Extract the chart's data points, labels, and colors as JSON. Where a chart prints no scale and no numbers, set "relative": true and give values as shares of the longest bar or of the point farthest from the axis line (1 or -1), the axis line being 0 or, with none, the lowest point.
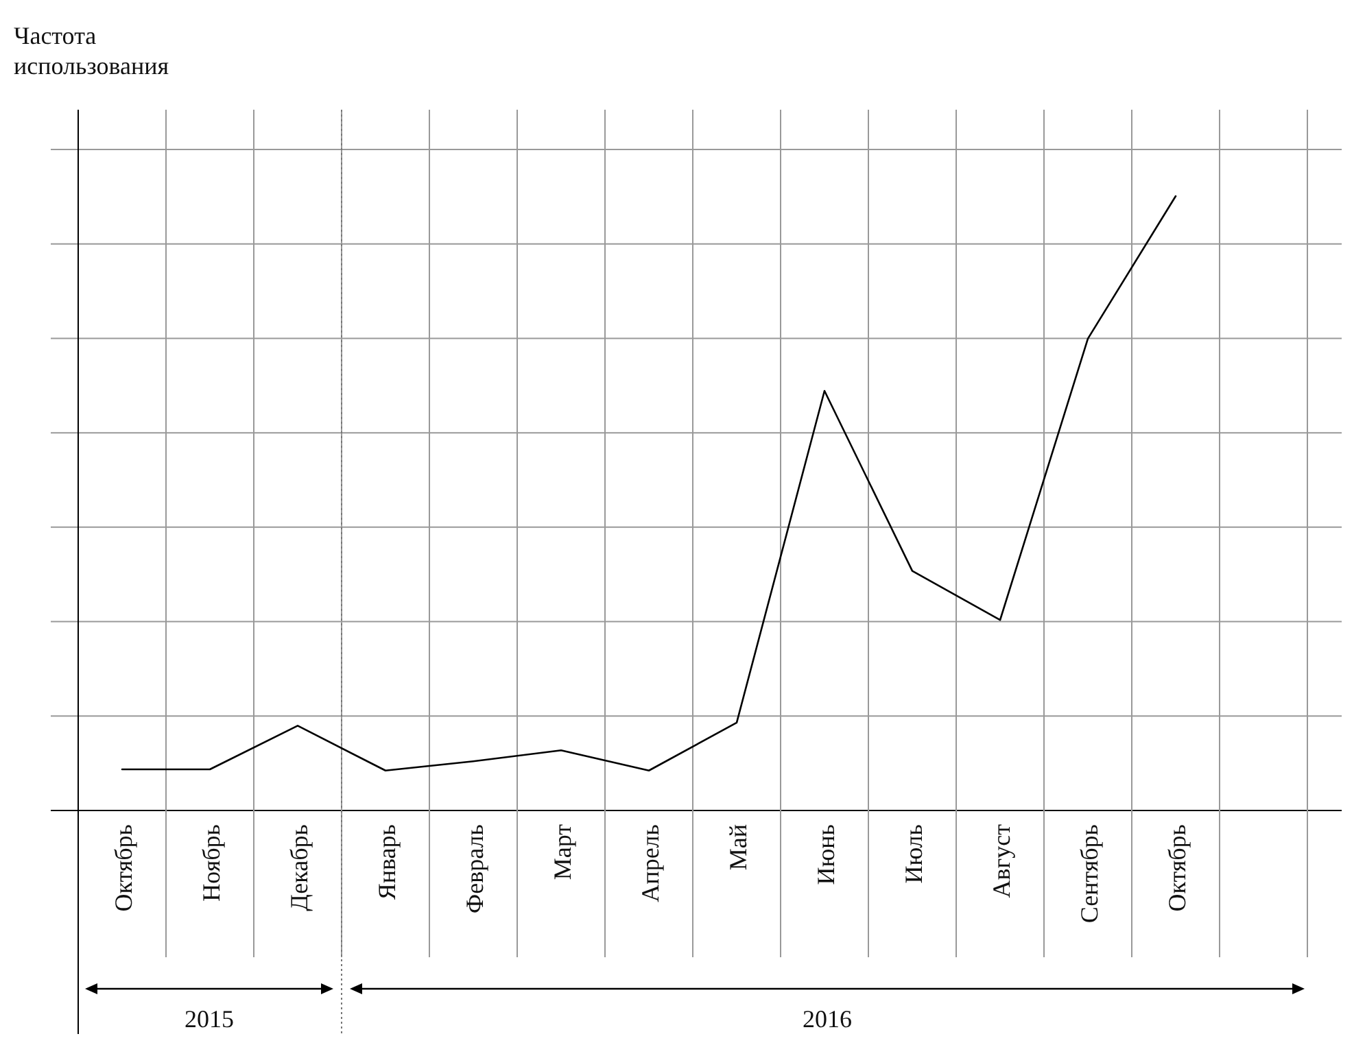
{
  "chart_data": {
    "type": "line",
    "ylabel": "Частота использования",
    "relative": true,
    "grid": true,
    "categories": [
      "Октябрь",
      "Ноябрь",
      "Декабрь",
      "Январь",
      "Февраль",
      "Март",
      "Апрель",
      "Май",
      "Июнь",
      "Июль",
      "Август",
      "Сентябрь",
      "Октябрь",
      null
    ],
    "series": [
      {
        "color": "#000000",
        "values": [
          0.067,
          0.067,
          0.138,
          0.065,
          0.08,
          0.098,
          0.065,
          0.143,
          0.683,
          0.39,
          0.31,
          0.768,
          1,
          null
        ]
      }
    ],
    "ref_lines": [
      {
        "axis": "x",
        "value": "Октябрь",
        "color": "#000000",
        "line_style": "solid"
      },
      {
        "axis": "x",
        "value": "Январь",
        "color": "#777777",
        "line_style": "dotted"
      }
    ],
    "annotations": [
      "2015",
      "2016"
    ]
  }
}
